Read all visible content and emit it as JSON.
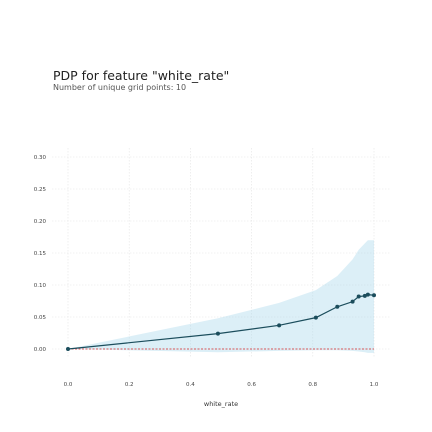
{
  "chart_data": {
    "type": "line",
    "title": "PDP for feature \"white_rate\"",
    "subtitle": "Number of unique grid points: 10",
    "xlabel": "white_rate",
    "ylabel": "",
    "xlim": [
      0.0,
      1.0
    ],
    "ylim": [
      0.0,
      0.3
    ],
    "x_ticks": [
      "0.0",
      "0.2",
      "0.4",
      "0.6",
      "0.8",
      "1.0"
    ],
    "y_ticks": [
      "0.00",
      "0.05",
      "0.10",
      "0.15",
      "0.20",
      "0.25",
      "0.30"
    ],
    "x_tick_values": [
      0.0,
      0.2,
      0.4,
      0.6,
      0.8,
      1.0
    ],
    "y_tick_values": [
      0.0,
      0.05,
      0.1,
      0.15,
      0.2,
      0.25,
      0.3
    ],
    "grid": true,
    "series": [
      {
        "x": [
          0.0,
          0.49,
          0.69,
          0.81,
          0.88,
          0.93,
          0.95,
          0.97,
          0.98,
          1.0
        ],
        "y": [
          0.0,
          0.024,
          0.037,
          0.049,
          0.066,
          0.074,
          0.082,
          0.083,
          0.085,
          0.084
        ],
        "lower": [
          0.0,
          -0.005,
          -0.003,
          -0.002,
          -0.002,
          -0.003,
          -0.004,
          -0.005,
          -0.006,
          -0.006
        ],
        "upper": [
          0.0,
          0.048,
          0.072,
          0.092,
          0.114,
          0.14,
          0.155,
          0.165,
          0.17,
          0.17
        ]
      }
    ],
    "baseline": 0.0,
    "colors": {
      "line": "#1b4d5c",
      "band": "#a8d8ea",
      "baseline": "#d62728",
      "grid": "#e4e4e4"
    }
  }
}
